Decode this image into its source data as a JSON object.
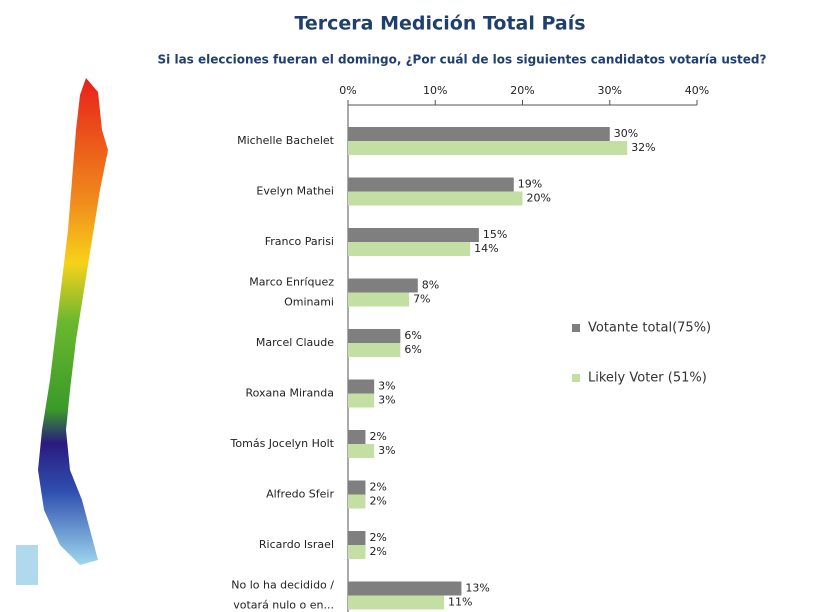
{
  "chart_data": {
    "type": "barh",
    "title": "Tercera Medición Total País",
    "subtitle": "Si las elecciones fueran el domingo, ¿Por cuál de los siguientes candidatos votaría usted?",
    "categories": [
      [
        "Michelle Bachelet"
      ],
      [
        "Evelyn Mathei"
      ],
      [
        "Franco Parisi"
      ],
      [
        "Marco Enríquez",
        "Ominami"
      ],
      [
        "Marcel Claude"
      ],
      [
        "Roxana Miranda"
      ],
      [
        "Tomás Jocelyn Holt"
      ],
      [
        "Alfredo Sfeir"
      ],
      [
        "Ricardo Israel"
      ],
      [
        "No lo ha decidido /",
        "votará nulo o en..."
      ]
    ],
    "series": [
      {
        "name": "Votante total(75%)",
        "color": "#7f7f7f",
        "values": [
          30,
          19,
          15,
          8,
          6,
          3,
          2,
          2,
          2,
          13
        ],
        "value_labels": [
          "30%",
          "19%",
          "15%",
          "8%",
          "6%",
          "3%",
          "2%",
          "2%",
          "2%",
          "13%"
        ]
      },
      {
        "name": "Likely Voter (51%)",
        "color": "#c4dfa3",
        "values": [
          32,
          20,
          14,
          7,
          6,
          3,
          3,
          2,
          2,
          11
        ],
        "value_labels": [
          "32%",
          "20%",
          "14%",
          "7%",
          "6%",
          "3%",
          "3%",
          "2%",
          "2%",
          "11%"
        ]
      }
    ],
    "xlim": [
      0,
      40
    ],
    "xticks": [
      {
        "value": 0,
        "label": "0%"
      },
      {
        "value": 10,
        "label": "10%"
      },
      {
        "value": 20,
        "label": "20%"
      },
      {
        "value": 30,
        "label": "30%"
      },
      {
        "value": 40,
        "label": "40%"
      }
    ]
  }
}
